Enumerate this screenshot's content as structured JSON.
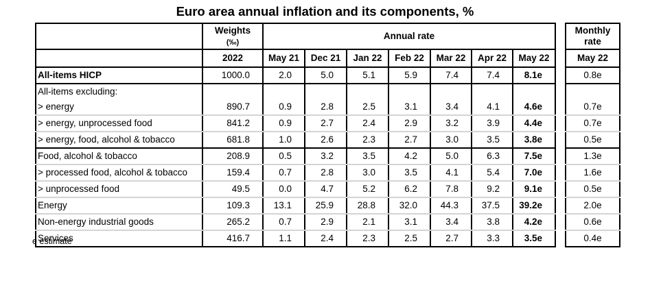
{
  "title": "Euro area annual inflation and its components, %",
  "header": {
    "weights_label": "Weights",
    "weights_unit": "(‰)",
    "annual_rate_label": "Annual rate",
    "monthly_rate_label_1": "Monthly",
    "monthly_rate_label_2": "rate",
    "weights_year": "2022",
    "annual_periods": [
      "May 21",
      "Dec 21",
      "Jan 22",
      "Feb 22",
      "Mar 22",
      "Apr 22",
      "May 22"
    ],
    "monthly_period": "May 22"
  },
  "rows": [
    {
      "label": "All-items HICP",
      "weight": "1000.0",
      "annual": [
        "2.0",
        "5.0",
        "5.1",
        "5.9",
        "7.4",
        "7.4",
        "8.1e"
      ],
      "monthly": "0.8e"
    },
    {
      "label": "All-items excluding:",
      "weight": "",
      "annual": [
        "",
        "",
        "",
        "",
        "",
        "",
        ""
      ],
      "monthly": ""
    },
    {
      "label": "> energy",
      "weight": "890.7",
      "annual": [
        "0.9",
        "2.8",
        "2.5",
        "3.1",
        "3.4",
        "4.1",
        "4.6e"
      ],
      "monthly": "0.7e"
    },
    {
      "label": "> energy, unprocessed food",
      "weight": "841.2",
      "annual": [
        "0.9",
        "2.7",
        "2.4",
        "2.9",
        "3.2",
        "3.9",
        "4.4e"
      ],
      "monthly": "0.7e"
    },
    {
      "label": "> energy, food, alcohol & tobacco",
      "weight": "681.8",
      "annual": [
        "1.0",
        "2.6",
        "2.3",
        "2.7",
        "3.0",
        "3.5",
        "3.8e"
      ],
      "monthly": "0.5e"
    },
    {
      "label": "Food, alcohol & tobacco",
      "weight": "208.9",
      "annual": [
        "0.5",
        "3.2",
        "3.5",
        "4.2",
        "5.0",
        "6.3",
        "7.5e"
      ],
      "monthly": "1.3e"
    },
    {
      "label": "> processed food, alcohol & tobacco",
      "weight": "159.4",
      "annual": [
        "0.7",
        "2.8",
        "3.0",
        "3.5",
        "4.1",
        "5.4",
        "7.0e"
      ],
      "monthly": "1.6e"
    },
    {
      "label": "> unprocessed food",
      "weight": "49.5",
      "annual": [
        "0.0",
        "4.7",
        "5.2",
        "6.2",
        "7.8",
        "9.2",
        "9.1e"
      ],
      "monthly": "0.5e"
    },
    {
      "label": "Energy",
      "weight": "109.3",
      "annual": [
        "13.1",
        "25.9",
        "28.8",
        "32.0",
        "44.3",
        "37.5",
        "39.2e"
      ],
      "monthly": "2.0e"
    },
    {
      "label": "Non-energy industrial goods",
      "weight": "265.2",
      "annual": [
        "0.7",
        "2.9",
        "2.1",
        "3.1",
        "3.4",
        "3.8",
        "4.2e"
      ],
      "monthly": "0.6e"
    },
    {
      "label": "Services",
      "weight": "416.7",
      "annual": [
        "1.1",
        "2.4",
        "2.3",
        "2.5",
        "2.7",
        "3.3",
        "3.5e"
      ],
      "monthly": "0.4e"
    }
  ],
  "footnote": "e estimate"
}
